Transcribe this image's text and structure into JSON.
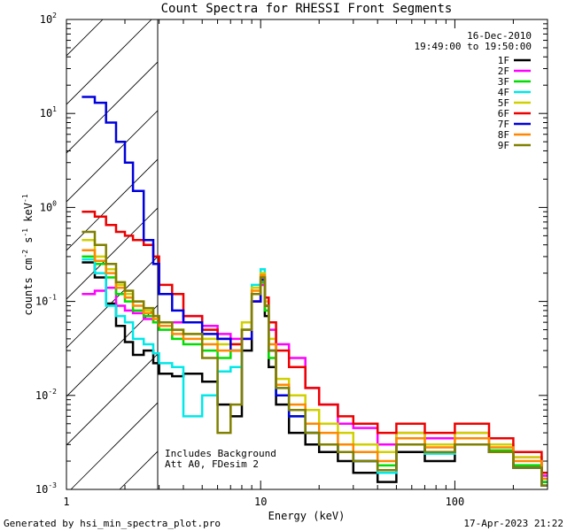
{
  "chart_data": {
    "type": "line",
    "title": "Count Spectra for RHESSI Front Segments",
    "xlabel": "Energy (keV)",
    "ylabel_parts": [
      "counts cm",
      "-2",
      " s",
      "-1",
      " keV",
      "-1"
    ],
    "xscale": "log",
    "yscale": "log",
    "xlim": [
      1,
      300
    ],
    "ylim": [
      0.001,
      100
    ],
    "x_ticks": [
      {
        "value": 1,
        "label": "1"
      },
      {
        "value": 10,
        "label": "10"
      },
      {
        "value": 100,
        "label": "100"
      }
    ],
    "y_ticks": [
      {
        "value": 0.001,
        "mant": "10",
        "exp": "-3"
      },
      {
        "value": 0.01,
        "mant": "10",
        "exp": "-2"
      },
      {
        "value": 0.1,
        "mant": "10",
        "exp": "-1"
      },
      {
        "value": 1,
        "mant": "10",
        "exp": "0"
      },
      {
        "value": 10,
        "mant": "10",
        "exp": "1"
      },
      {
        "value": 100,
        "mant": "10",
        "exp": "2"
      }
    ],
    "shaded_region": {
      "x_start": 1,
      "x_end": 3,
      "pattern": "diagonal hatch"
    },
    "date_label": "16-Dec-2010",
    "time_label": "19:49:00 to 19:50:00",
    "annotations": [
      "Includes Background",
      "Att A0, FDesim 2"
    ],
    "legend_position": "top-right",
    "series": [
      {
        "name": "1F",
        "color": "#000000",
        "x": [
          1.2,
          1.4,
          1.6,
          1.8,
          2.0,
          2.2,
          2.5,
          2.8,
          3.0,
          3.5,
          4.0,
          5.0,
          6.0,
          7.0,
          8.0,
          9.0,
          10.0,
          10.5,
          11.0,
          12.0,
          14.0,
          17.0,
          20.0,
          25.0,
          30.0,
          40.0,
          50.0,
          70.0,
          100.0,
          150.0,
          200.0,
          280.0
        ],
        "y": [
          0.26,
          0.18,
          0.095,
          0.055,
          0.037,
          0.027,
          0.03,
          0.022,
          0.017,
          0.016,
          0.017,
          0.014,
          0.008,
          0.006,
          0.03,
          0.1,
          0.15,
          0.07,
          0.02,
          0.008,
          0.004,
          0.003,
          0.0025,
          0.002,
          0.0015,
          0.0012,
          0.0025,
          0.002,
          0.003,
          0.0025,
          0.0018,
          0.0012
        ]
      },
      {
        "name": "2F",
        "color": "#ff00ff",
        "x": [
          1.2,
          1.4,
          1.6,
          1.8,
          2.0,
          2.2,
          2.5,
          2.8,
          3.0,
          3.5,
          4.0,
          5.0,
          6.0,
          7.0,
          8.0,
          9.0,
          10.0,
          10.5,
          11.0,
          12.0,
          14.0,
          17.0,
          20.0,
          25.0,
          30.0,
          40.0,
          50.0,
          70.0,
          100.0,
          150.0,
          200.0,
          280.0
        ],
        "y": [
          0.12,
          0.13,
          0.14,
          0.09,
          0.08,
          0.075,
          0.065,
          0.06,
          0.055,
          0.06,
          0.07,
          0.055,
          0.045,
          0.04,
          0.05,
          0.1,
          0.15,
          0.09,
          0.05,
          0.035,
          0.025,
          0.012,
          0.008,
          0.005,
          0.0045,
          0.003,
          0.004,
          0.0035,
          0.004,
          0.003,
          0.0022,
          0.0014
        ]
      },
      {
        "name": "3F",
        "color": "#00dd00",
        "x": [
          1.2,
          1.4,
          1.6,
          1.8,
          2.0,
          2.2,
          2.5,
          2.8,
          3.0,
          3.5,
          4.0,
          5.0,
          6.0,
          7.0,
          8.0,
          9.0,
          10.0,
          10.5,
          11.0,
          12.0,
          14.0,
          17.0,
          20.0,
          25.0,
          30.0,
          40.0,
          50.0,
          70.0,
          100.0,
          150.0,
          200.0,
          280.0
        ],
        "y": [
          0.3,
          0.25,
          0.18,
          0.12,
          0.1,
          0.08,
          0.07,
          0.06,
          0.05,
          0.04,
          0.035,
          0.03,
          0.025,
          0.03,
          0.05,
          0.12,
          0.16,
          0.08,
          0.025,
          0.01,
          0.006,
          0.004,
          0.003,
          0.0025,
          0.002,
          0.0018,
          0.003,
          0.0025,
          0.003,
          0.0026,
          0.0018,
          0.0012
        ]
      },
      {
        "name": "4F",
        "color": "#00e8e8",
        "x": [
          1.2,
          1.4,
          1.6,
          1.8,
          2.0,
          2.2,
          2.5,
          2.8,
          3.0,
          3.5,
          4.0,
          5.0,
          6.0,
          7.0,
          8.0,
          9.0,
          10.0,
          10.5,
          11.0,
          12.0,
          14.0,
          17.0,
          20.0,
          25.0,
          30.0,
          40.0,
          50.0,
          70.0,
          100.0,
          150.0,
          200.0,
          280.0
        ],
        "y": [
          0.28,
          0.2,
          0.09,
          0.07,
          0.06,
          0.04,
          0.035,
          0.028,
          0.022,
          0.02,
          0.006,
          0.01,
          0.018,
          0.02,
          0.05,
          0.15,
          0.22,
          0.09,
          0.03,
          0.012,
          0.007,
          0.004,
          0.003,
          0.0025,
          0.002,
          0.0015,
          0.003,
          0.0024,
          0.003,
          0.0025,
          0.0017,
          0.0011
        ]
      },
      {
        "name": "5F",
        "color": "#d0d000",
        "x": [
          1.2,
          1.4,
          1.6,
          1.8,
          2.0,
          2.2,
          2.5,
          2.8,
          3.0,
          3.5,
          4.0,
          5.0,
          6.0,
          7.0,
          8.0,
          9.0,
          10.0,
          10.5,
          11.0,
          12.0,
          14.0,
          17.0,
          20.0,
          25.0,
          30.0,
          40.0,
          50.0,
          70.0,
          100.0,
          150.0,
          200.0,
          280.0
        ],
        "y": [
          0.45,
          0.3,
          0.22,
          0.15,
          0.12,
          0.1,
          0.08,
          0.07,
          0.06,
          0.05,
          0.045,
          0.04,
          0.035,
          0.035,
          0.06,
          0.14,
          0.2,
          0.1,
          0.04,
          0.015,
          0.01,
          0.007,
          0.005,
          0.004,
          0.003,
          0.0025,
          0.004,
          0.003,
          0.004,
          0.003,
          0.0022,
          0.0015
        ]
      },
      {
        "name": "6F",
        "color": "#ee0000",
        "x": [
          1.2,
          1.4,
          1.6,
          1.8,
          2.0,
          2.2,
          2.5,
          2.8,
          3.0,
          3.5,
          4.0,
          5.0,
          6.0,
          7.0,
          8.0,
          9.0,
          10.0,
          10.5,
          11.0,
          12.0,
          14.0,
          17.0,
          20.0,
          25.0,
          30.0,
          40.0,
          50.0,
          70.0,
          100.0,
          150.0,
          200.0,
          280.0
        ],
        "y": [
          0.9,
          0.8,
          0.65,
          0.55,
          0.5,
          0.45,
          0.4,
          0.3,
          0.15,
          0.12,
          0.07,
          0.05,
          0.04,
          0.035,
          0.04,
          0.1,
          0.18,
          0.11,
          0.06,
          0.03,
          0.02,
          0.012,
          0.008,
          0.006,
          0.005,
          0.004,
          0.005,
          0.004,
          0.005,
          0.0035,
          0.0025,
          0.0015
        ]
      },
      {
        "name": "7F",
        "color": "#0000dd",
        "x": [
          1.2,
          1.4,
          1.6,
          1.8,
          2.0,
          2.2,
          2.5,
          2.8,
          3.0,
          3.5,
          4.0,
          5.0,
          6.0,
          7.0,
          8.0,
          9.0,
          10.0,
          10.5,
          11.0,
          12.0,
          14.0,
          17.0,
          20.0,
          25.0,
          30.0,
          40.0,
          50.0,
          70.0,
          100.0,
          150.0,
          200.0,
          280.0
        ],
        "y": [
          15.0,
          13.0,
          8.0,
          5.0,
          3.0,
          1.5,
          0.45,
          0.25,
          0.12,
          0.08,
          0.06,
          0.045,
          0.04,
          0.03,
          0.04,
          0.1,
          0.17,
          0.09,
          0.03,
          0.01,
          0.006,
          0.004,
          0.003,
          0.0025,
          0.002,
          0.0016,
          0.003,
          0.0025,
          0.003,
          0.0025,
          0.0017,
          0.0011
        ]
      },
      {
        "name": "8F",
        "color": "#ff8800",
        "x": [
          1.2,
          1.4,
          1.6,
          1.8,
          2.0,
          2.2,
          2.5,
          2.8,
          3.0,
          3.5,
          4.0,
          5.0,
          6.0,
          7.0,
          8.0,
          9.0,
          10.0,
          10.5,
          11.0,
          12.0,
          14.0,
          17.0,
          20.0,
          25.0,
          30.0,
          40.0,
          50.0,
          70.0,
          100.0,
          150.0,
          200.0,
          280.0
        ],
        "y": [
          0.35,
          0.27,
          0.2,
          0.14,
          0.11,
          0.09,
          0.075,
          0.065,
          0.055,
          0.045,
          0.04,
          0.035,
          0.03,
          0.03,
          0.05,
          0.13,
          0.19,
          0.09,
          0.035,
          0.013,
          0.008,
          0.005,
          0.004,
          0.003,
          0.0025,
          0.002,
          0.0035,
          0.0028,
          0.0035,
          0.0028,
          0.002,
          0.0013
        ]
      },
      {
        "name": "9F",
        "color": "#808000",
        "x": [
          1.2,
          1.4,
          1.6,
          1.8,
          2.0,
          2.2,
          2.5,
          2.8,
          3.0,
          3.5,
          4.0,
          5.0,
          6.0,
          7.0,
          8.0,
          9.0,
          10.0,
          10.5,
          11.0,
          12.0,
          14.0,
          17.0,
          20.0,
          25.0,
          30.0,
          40.0,
          50.0,
          70.0,
          100.0,
          150.0,
          200.0,
          280.0
        ],
        "y": [
          0.55,
          0.4,
          0.25,
          0.16,
          0.13,
          0.1,
          0.085,
          0.07,
          0.06,
          0.05,
          0.045,
          0.025,
          0.004,
          0.008,
          0.05,
          0.12,
          0.18,
          0.09,
          0.03,
          0.012,
          0.007,
          0.004,
          0.003,
          0.0025,
          0.002,
          0.0016,
          0.003,
          0.0025,
          0.003,
          0.0025,
          0.0017,
          0.0011
        ]
      }
    ]
  },
  "footer": {
    "left": "Generated by hsi_min_spectra_plot.pro",
    "right": "17-Apr-2023 21:22"
  }
}
